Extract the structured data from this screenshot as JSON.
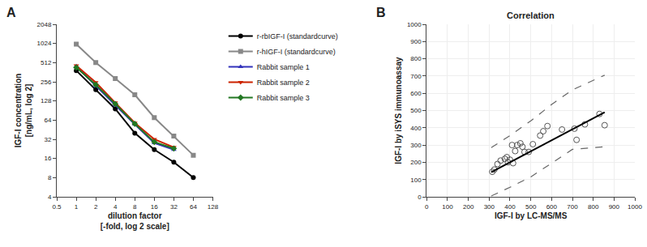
{
  "chart_data": [
    {
      "type": "line",
      "log": true,
      "xlabel": "dilution factor\n[-fold, log 2 scale]",
      "ylabel": "IGF-I concentration\n[ng/mL, log 2]",
      "annotations": [
        "A"
      ],
      "legend": "right",
      "grid": false,
      "xlim": [
        0.5,
        128
      ],
      "ylim": [
        4,
        2048
      ],
      "xticks": [
        0.5,
        1,
        2,
        4,
        8,
        16,
        32,
        64,
        128
      ],
      "yticks": [
        4,
        8,
        16,
        32,
        64,
        128,
        256,
        512,
        1024,
        2048
      ],
      "series": [
        {
          "name": "r-rbIGF-I (standardcurve)",
          "color": "#000000",
          "marker": "circle",
          "x": [
            1,
            2,
            4,
            8,
            16,
            32,
            64
          ],
          "values": [
            384,
            192,
            96,
            40,
            22,
            14,
            8
          ]
        },
        {
          "name": "r-hIGF-I (standardcurve)",
          "color": "#888888",
          "marker": "square",
          "x": [
            1,
            2,
            4,
            8,
            16,
            32,
            64
          ],
          "values": [
            1000,
            512,
            288,
            160,
            70,
            36,
            18
          ]
        },
        {
          "name": "Rabbit sample 1",
          "color": "#3333bb",
          "marker": "triangle-up",
          "x": [
            1,
            2,
            4,
            8,
            16,
            32
          ],
          "values": [
            450,
            220,
            110,
            55,
            28,
            22
          ]
        },
        {
          "name": "Rabbit sample 2",
          "color": "#cc2200",
          "marker": "triangle-down",
          "x": [
            1,
            2,
            4,
            8,
            16,
            32
          ],
          "values": [
            460,
            250,
            120,
            58,
            32,
            24
          ]
        },
        {
          "name": "Rabbit sample 3",
          "color": "#227722",
          "marker": "diamond",
          "x": [
            1,
            2,
            4,
            8,
            16,
            32
          ],
          "values": [
            430,
            230,
            115,
            56,
            29,
            23
          ]
        }
      ]
    },
    {
      "type": "scatter",
      "title": "Correlation",
      "xlabel": "IGF-I by LC-MS/MS",
      "ylabel": "IGF-I by iSYS immunoassay",
      "annotations": [
        "B"
      ],
      "grid": true,
      "xlim": [
        0,
        1000
      ],
      "ylim": [
        0,
        1000
      ],
      "xticks": [
        0,
        100,
        200,
        300,
        400,
        500,
        600,
        700,
        800,
        900,
        1000
      ],
      "yticks": [
        0,
        100,
        200,
        300,
        400,
        500,
        600,
        700,
        800,
        900,
        1000
      ],
      "series": [
        {
          "type": "scatter",
          "marker": "circle-open",
          "color": "#555555",
          "x": [
            315,
            325,
            340,
            355,
            375,
            385,
            390,
            400,
            410,
            415,
            425,
            435,
            450,
            460,
            470,
            490,
            510,
            545,
            560,
            580,
            650,
            710,
            720,
            760,
            830,
            855
          ],
          "values": [
            145,
            158,
            190,
            210,
            220,
            230,
            200,
            215,
            300,
            195,
            265,
            300,
            310,
            290,
            260,
            260,
            305,
            355,
            380,
            410,
            390,
            395,
            330,
            420,
            480,
            415
          ]
        },
        {
          "type": "line",
          "line_style": "solid",
          "color": "#000000",
          "x": [
            310,
            855
          ],
          "values": [
            143,
            490
          ]
        },
        {
          "type": "line",
          "line_style": "dashed",
          "color": "#666666",
          "x": [
            310,
            400,
            500,
            600,
            700,
            855
          ],
          "values": [
            285,
            355,
            440,
            535,
            620,
            705
          ]
        },
        {
          "type": "line",
          "line_style": "dashed",
          "color": "#666666",
          "x": [
            310,
            400,
            500,
            600,
            700,
            855
          ],
          "values": [
            5,
            55,
            115,
            195,
            275,
            290
          ]
        }
      ]
    }
  ]
}
